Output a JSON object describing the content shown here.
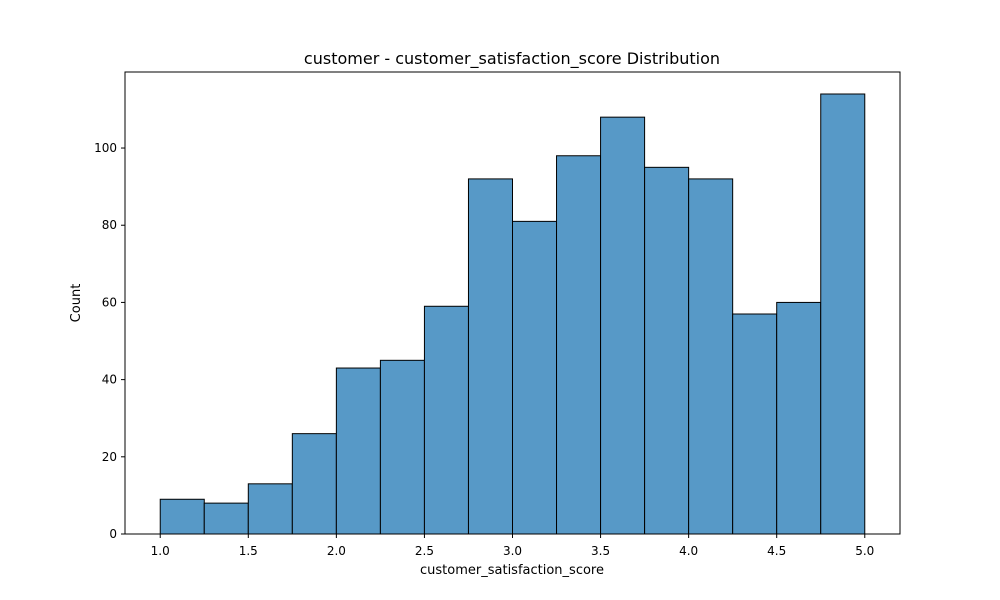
{
  "chart_data": {
    "type": "bar",
    "title": "customer - customer_satisfaction_score Distribution",
    "xlabel": "customer_satisfaction_score",
    "ylabel": "Count",
    "bin_edges": [
      1.0,
      1.25,
      1.5,
      1.75,
      2.0,
      2.25,
      2.5,
      2.75,
      3.0,
      3.25,
      3.5,
      3.75,
      4.0,
      4.25,
      4.5,
      4.75,
      5.0
    ],
    "counts": [
      9,
      8,
      13,
      26,
      43,
      45,
      59,
      92,
      81,
      98,
      108,
      95,
      92,
      57,
      60,
      114
    ],
    "xlim": [
      0.8,
      5.2
    ],
    "ylim": [
      0,
      119.7
    ],
    "xticks": [
      1.0,
      1.5,
      2.0,
      2.5,
      3.0,
      3.5,
      4.0,
      4.5,
      5.0
    ],
    "xtick_labels": [
      "1.0",
      "1.5",
      "2.0",
      "2.5",
      "3.0",
      "3.5",
      "4.0",
      "4.5",
      "5.0"
    ],
    "yticks": [
      0,
      20,
      40,
      60,
      80,
      100
    ],
    "ytick_labels": [
      "0",
      "20",
      "40",
      "60",
      "80",
      "100"
    ],
    "grid": false,
    "bar_color": "#5799c7",
    "edge_color": "#000000"
  }
}
